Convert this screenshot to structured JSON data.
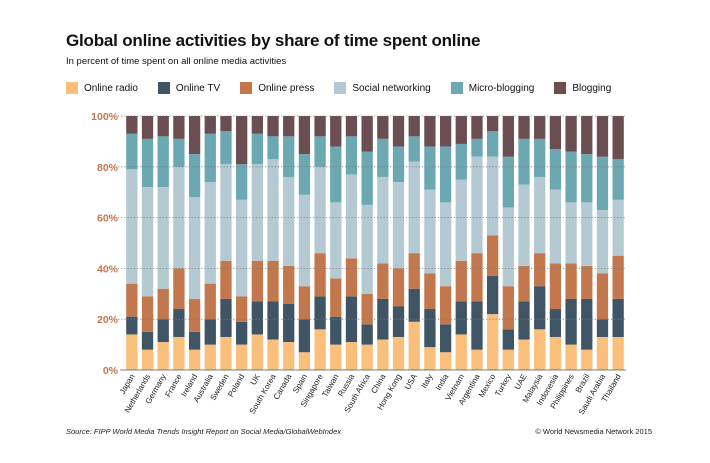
{
  "chart_data": {
    "type": "bar",
    "stacked": true,
    "title": "Global online activities by share of time spent online",
    "subtitle": "In percent of time spent on all online media activities",
    "ylim": [
      0,
      100
    ],
    "yticks": [
      "0%",
      "20%",
      "40%",
      "60%",
      "80%",
      "100%"
    ],
    "grid": true,
    "legend_position": "top",
    "categories": [
      "Japan",
      "Netherlands",
      "Germany",
      "France",
      "Ireland",
      "Australia",
      "Sweden",
      "Poland",
      "UK",
      "South Korea",
      "Canada",
      "Spain",
      "Singapore",
      "Taiwan",
      "Russia",
      "South Africa",
      "China",
      "Hong Kong",
      "USA",
      "Italy",
      "India",
      "Vietnam",
      "Argentina",
      "Mexico",
      "Turkey",
      "UAE",
      "Malaysia",
      "Indonesia",
      "Philippines",
      "Brazil",
      "Saudi Arabia",
      "Thailand"
    ],
    "series": [
      {
        "name": "Online radio",
        "color": "#fbbf7c",
        "values": [
          14,
          8,
          11,
          13,
          8,
          10,
          13,
          10,
          14,
          12,
          11,
          7,
          16,
          10,
          11,
          10,
          12,
          13,
          19,
          9,
          7,
          14,
          8,
          22,
          8,
          12,
          16,
          13,
          10,
          8,
          13,
          13
        ]
      },
      {
        "name": "Online TV",
        "color": "#3f5566",
        "values": [
          7,
          7,
          9,
          11,
          7,
          10,
          15,
          9,
          13,
          15,
          15,
          13,
          13,
          11,
          18,
          8,
          16,
          12,
          13,
          15,
          11,
          13,
          19,
          15,
          8,
          15,
          17,
          11,
          18,
          20,
          7,
          15
        ]
      },
      {
        "name": "Online press",
        "color": "#c2784c",
        "values": [
          13,
          14,
          12,
          16,
          13,
          14,
          15,
          10,
          16,
          16,
          15,
          13,
          17,
          15,
          15,
          12,
          14,
          15,
          14,
          14,
          15,
          16,
          19,
          16,
          17,
          14,
          13,
          18,
          14,
          13,
          18,
          17
        ]
      },
      {
        "name": "Social networking",
        "color": "#b5c9d3",
        "values": [
          45,
          43,
          40,
          40,
          40,
          40,
          38,
          38,
          38,
          40,
          35,
          36,
          34,
          30,
          33,
          35,
          34,
          34,
          36,
          33,
          33,
          32,
          38,
          31,
          31,
          32,
          30,
          29,
          24,
          25,
          25,
          22
        ]
      },
      {
        "name": "Micro-blogging",
        "color": "#6ba8b1",
        "values": [
          14,
          19,
          20,
          11,
          17,
          19,
          13,
          14,
          12,
          9,
          16,
          16,
          12,
          22,
          15,
          21,
          15,
          14,
          10,
          17,
          22,
          14,
          7,
          10,
          20,
          18,
          15,
          16,
          20,
          19,
          21,
          16
        ]
      },
      {
        "name": "Blogging",
        "color": "#6a4e51",
        "values": [
          7,
          9,
          8,
          9,
          15,
          7,
          6,
          19,
          7,
          8,
          8,
          15,
          8,
          12,
          8,
          14,
          9,
          12,
          8,
          12,
          12,
          11,
          9,
          6,
          16,
          9,
          9,
          13,
          14,
          15,
          16,
          17
        ]
      }
    ]
  },
  "source": "Source: FIPP World Media Trends Insight Report on Social Media/GlobalWebIndex",
  "copyright": "© World Newsmedia Network 2015"
}
